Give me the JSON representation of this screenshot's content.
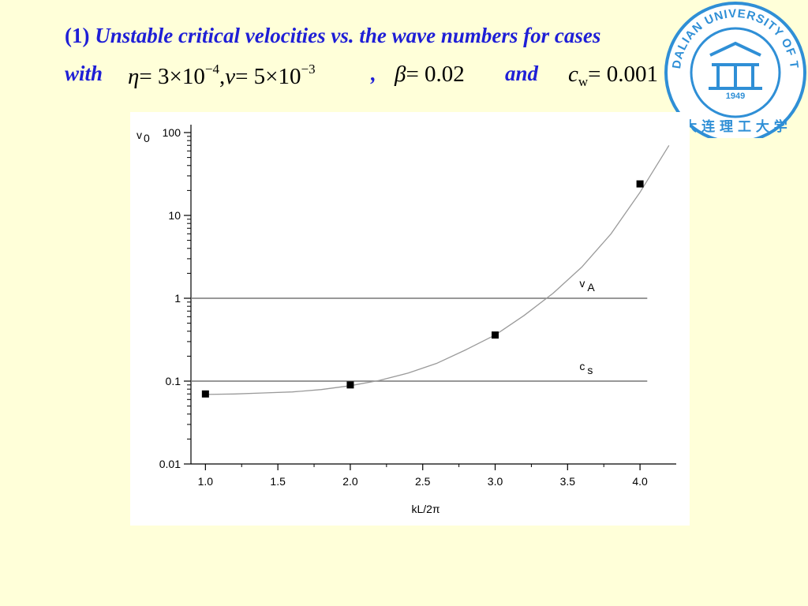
{
  "slide": {
    "number": "(1)",
    "title": "Unstable critical velocities vs. the wave numbers for cases",
    "with_label": "with",
    "and_label": "and",
    "comma": ",",
    "eq_eta": {
      "symbol": "η",
      "rhs": "= 3×10",
      "exp": "−4"
    },
    "eq_nu": {
      "symbol": "ν",
      "rhs": "= 5×10",
      "exp": "−3"
    },
    "eq_beta": {
      "symbol": "β",
      "rhs": "= 0.02"
    },
    "eq_cw": {
      "symbol": "c",
      "sub": "w",
      "rhs": "= 0.001"
    }
  },
  "logo": {
    "text_ring": "DALIAN UNIVERSITY OF TECHNOLOGY",
    "year": "1949",
    "chinese": "大 连 理 工 大 学",
    "color": "#2f8fd6"
  },
  "chart_data": {
    "type": "scatter",
    "ylabel": "v",
    "ylabel_sub": "0",
    "xlabel": "kL/2π",
    "x_ticks": [
      "1.0",
      "1.5",
      "2.0",
      "2.5",
      "3.0",
      "3.5",
      "4.0"
    ],
    "y_ticks": [
      "100",
      "10",
      "1",
      "0.1",
      "0.01"
    ],
    "xlim": [
      0.9,
      4.25
    ],
    "ylim": [
      0.01,
      100
    ],
    "yscale": "log",
    "points": [
      {
        "x": 1.0,
        "y": 0.07
      },
      {
        "x": 2.0,
        "y": 0.09
      },
      {
        "x": 3.0,
        "y": 0.36
      },
      {
        "x": 4.0,
        "y": 24
      }
    ],
    "fit_curve": {
      "x": [
        1.0,
        1.2,
        1.4,
        1.6,
        1.8,
        2.0,
        2.2,
        2.4,
        2.6,
        2.8,
        3.0,
        3.2,
        3.4,
        3.6,
        3.8,
        4.0,
        4.2
      ],
      "y": [
        0.069,
        0.07,
        0.072,
        0.074,
        0.079,
        0.088,
        0.102,
        0.125,
        0.165,
        0.24,
        0.36,
        0.62,
        1.15,
        2.4,
        6.0,
        19,
        70
      ]
    },
    "reference_lines": [
      {
        "label": "v",
        "label_sub": "A",
        "y": 1
      },
      {
        "label": "c",
        "label_sub": "s",
        "y": 0.1
      }
    ],
    "colors": {
      "curve": "#9a9a9a",
      "ref_line": "#777777",
      "marker": "#000000"
    }
  }
}
